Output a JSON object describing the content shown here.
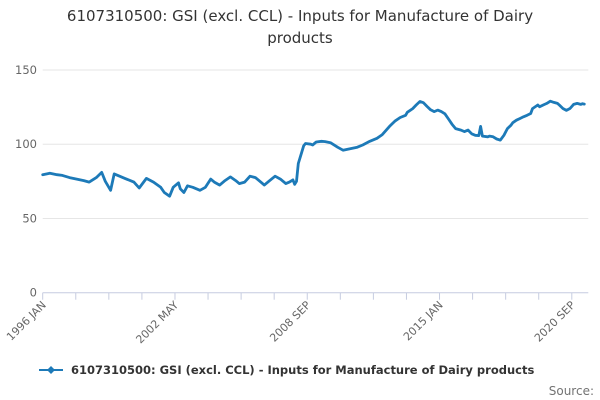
{
  "title": "6107310500: GSI (excl. CCL) - Inputs for Manufacture of Dairy products",
  "legend": {
    "label": "6107310500: GSI (excl. CCL) - Inputs for Manufacture of Dairy products"
  },
  "source_label": "Source:",
  "colors": {
    "series": "#1d7ab8",
    "axis": "#c6cce0",
    "grid": "#e6e6e6",
    "tick_label": "#666666",
    "title_text": "#333333",
    "source_text": "#737373"
  },
  "chart_data": {
    "type": "line",
    "title": "6107310500: GSI (excl. CCL) - Inputs for Manufacture of Dairy products",
    "xlabel": "",
    "ylabel": "",
    "grid": "horizontal",
    "legend_position": "bottom-left",
    "y_axis": {
      "ticks": [
        0,
        50,
        100,
        150
      ],
      "ylim": [
        0,
        155
      ]
    },
    "x_axis": {
      "start": "1996-01",
      "end": "2021-06",
      "minor_tick_count": 17,
      "labeled_tick_indices": [
        0,
        4,
        8,
        12,
        16
      ],
      "tick_labels": [
        "1996 JAN",
        "2002 MAY",
        "2008 SEP",
        "2015 JAN",
        "2020 SEP"
      ],
      "label_rotation_deg": -45
    },
    "series": [
      {
        "name": "6107310500: GSI (excl. CCL) - Inputs for Manufacture of Dairy products",
        "color": "#1d7ab8",
        "data": [
          [
            "1996-01",
            79.5
          ],
          [
            "1996-05",
            80.5
          ],
          [
            "1996-09",
            79.5
          ],
          [
            "1996-12",
            79
          ],
          [
            "1997-04",
            77.5
          ],
          [
            "1997-08",
            76.5
          ],
          [
            "1997-12",
            75.5
          ],
          [
            "1998-03",
            74.5
          ],
          [
            "1998-07",
            77.5
          ],
          [
            "1998-10",
            81
          ],
          [
            "1998-12",
            75
          ],
          [
            "1999-03",
            69
          ],
          [
            "1999-05",
            80
          ],
          [
            "1999-08",
            78.5
          ],
          [
            "1999-11",
            77
          ],
          [
            "2000-04",
            74.5
          ],
          [
            "2000-07",
            70.5
          ],
          [
            "2000-11",
            77
          ],
          [
            "2001-03",
            74.5
          ],
          [
            "2001-07",
            71
          ],
          [
            "2001-09",
            67.5
          ],
          [
            "2001-12",
            65
          ],
          [
            "2002-02",
            71
          ],
          [
            "2002-05",
            74
          ],
          [
            "2002-06",
            70
          ],
          [
            "2002-08",
            67.5
          ],
          [
            "2002-10",
            72
          ],
          [
            "2003-01",
            71
          ],
          [
            "2003-05",
            69
          ],
          [
            "2003-08",
            71
          ],
          [
            "2003-11",
            76.5
          ],
          [
            "2004-01",
            74.5
          ],
          [
            "2004-04",
            72.5
          ],
          [
            "2004-07",
            75.5
          ],
          [
            "2004-10",
            78
          ],
          [
            "2005-01",
            75.5
          ],
          [
            "2005-03",
            73.5
          ],
          [
            "2005-06",
            74.5
          ],
          [
            "2005-09",
            78.5
          ],
          [
            "2005-12",
            77.5
          ],
          [
            "2006-03",
            74.5
          ],
          [
            "2006-05",
            72.5
          ],
          [
            "2006-08",
            75.5
          ],
          [
            "2006-11",
            78.5
          ],
          [
            "2007-02",
            76.5
          ],
          [
            "2007-05",
            73.5
          ],
          [
            "2007-07",
            74.5
          ],
          [
            "2007-09",
            76
          ],
          [
            "2007-10",
            73
          ],
          [
            "2007-11",
            75
          ],
          [
            "2007-12",
            87
          ],
          [
            "2008-02",
            95
          ],
          [
            "2008-03",
            99
          ],
          [
            "2008-04",
            100.5
          ],
          [
            "2008-07",
            100
          ],
          [
            "2008-08",
            99.5
          ],
          [
            "2008-10",
            101.5
          ],
          [
            "2009-01",
            102
          ],
          [
            "2009-03",
            101.8
          ],
          [
            "2009-06",
            101
          ],
          [
            "2009-10",
            98
          ],
          [
            "2010-01",
            96
          ],
          [
            "2010-05",
            97
          ],
          [
            "2010-09",
            98
          ],
          [
            "2010-12",
            99.5
          ],
          [
            "2011-04",
            102
          ],
          [
            "2011-08",
            104
          ],
          [
            "2011-11",
            106.5
          ],
          [
            "2012-03",
            112
          ],
          [
            "2012-06",
            115.5
          ],
          [
            "2012-09",
            118
          ],
          [
            "2012-12",
            119.5
          ],
          [
            "2013-01",
            121.5
          ],
          [
            "2013-04",
            124
          ],
          [
            "2013-06",
            126.5
          ],
          [
            "2013-08",
            128.8
          ],
          [
            "2013-10",
            128
          ],
          [
            "2013-12",
            125.5
          ],
          [
            "2014-02",
            123.2
          ],
          [
            "2014-04",
            122
          ],
          [
            "2014-06",
            123
          ],
          [
            "2014-08",
            122
          ],
          [
            "2014-10",
            120.5
          ],
          [
            "2014-12",
            117
          ],
          [
            "2015-02",
            113.5
          ],
          [
            "2015-04",
            110.5
          ],
          [
            "2015-07",
            109.5
          ],
          [
            "2015-09",
            108.5
          ],
          [
            "2015-11",
            109.5
          ],
          [
            "2016-01",
            107
          ],
          [
            "2016-03",
            106
          ],
          [
            "2016-05",
            105.8
          ],
          [
            "2016-06",
            112
          ],
          [
            "2016-07",
            105.5
          ],
          [
            "2016-10",
            105
          ],
          [
            "2016-11",
            105.5
          ],
          [
            "2017-01",
            105
          ],
          [
            "2017-03",
            103.5
          ],
          [
            "2017-05",
            102.8
          ],
          [
            "2017-07",
            106
          ],
          [
            "2017-09",
            110.5
          ],
          [
            "2017-11",
            112.8
          ],
          [
            "2017-12",
            114.5
          ],
          [
            "2018-02",
            116.2
          ],
          [
            "2018-04",
            117.3
          ],
          [
            "2018-06",
            118.5
          ],
          [
            "2018-08",
            119.5
          ],
          [
            "2018-10",
            120.7
          ],
          [
            "2018-11",
            124
          ],
          [
            "2019-02",
            126.4
          ],
          [
            "2019-03",
            125.2
          ],
          [
            "2019-05",
            126.4
          ],
          [
            "2019-07",
            127.5
          ],
          [
            "2019-09",
            129
          ],
          [
            "2019-11",
            128.2
          ],
          [
            "2020-01",
            127.5
          ],
          [
            "2020-02",
            126.4
          ],
          [
            "2020-04",
            124.1
          ],
          [
            "2020-06",
            122.8
          ],
          [
            "2020-08",
            124.1
          ],
          [
            "2020-10",
            126.8
          ],
          [
            "2020-12",
            127.5
          ],
          [
            "2021-02",
            126.8
          ],
          [
            "2021-03",
            127.3
          ],
          [
            "2021-04",
            127
          ]
        ]
      }
    ]
  }
}
